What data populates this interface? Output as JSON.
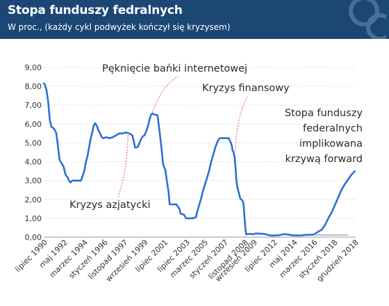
{
  "header": {
    "title": "Stopa funduszy fedralnych",
    "subtitle": "W proc., (każdy cykl podwyżek kończył się kryzysem)"
  },
  "colors": {
    "header_bg": "#1c4775",
    "line": "#2e6ed6",
    "grid": "#cfcfcf",
    "axis_text": "#333333",
    "annotation_leader": "#e05454",
    "forward_marker": "#bcbcbc"
  },
  "chart_data": {
    "type": "line",
    "title": "Stopa funduszy fedralnych",
    "subtitle": "W proc., (każdy cykl podwyżek kończył się kryzysem)",
    "xlabel": "",
    "ylabel": "",
    "ylim": [
      0,
      9
    ],
    "xlim": [
      1990.5,
      2019.0
    ],
    "yticks": [
      "0,00",
      "1,00",
      "2,00",
      "3,00",
      "4,00",
      "5,00",
      "6,00",
      "7,00",
      "8,00",
      "9,00"
    ],
    "xticks": [
      {
        "label": "lipiec 1990",
        "x": 1990.5
      },
      {
        "label": "maj 1992",
        "x": 1992.33
      },
      {
        "label": "marzec 1994",
        "x": 1994.17
      },
      {
        "label": "styczeń 1996",
        "x": 1996.0
      },
      {
        "label": "listopad 1997",
        "x": 1997.83
      },
      {
        "label": "wrzesień 1999",
        "x": 1999.67
      },
      {
        "label": "lipiec 2001",
        "x": 2001.5
      },
      {
        "label": "lipiec 2003",
        "x": 2003.5
      },
      {
        "label": "marzec 2005",
        "x": 2005.17
      },
      {
        "label": "styczeń 2007",
        "x": 2007.0
      },
      {
        "label": "listopad 2008",
        "x": 2008.83
      },
      {
        "label": "wrzesień 2009",
        "x": 2009.67
      },
      {
        "label": "lipiec 2012",
        "x": 2011.5
      },
      {
        "label": "maj 2014",
        "x": 2013.33
      },
      {
        "label": "marzec 2016",
        "x": 2015.17
      },
      {
        "label": "styczeń 2018",
        "x": 2017.0
      },
      {
        "label": "grudzień 2018",
        "x": 2018.92
      }
    ],
    "grid": true,
    "legend": "none",
    "series": [
      {
        "x": [
          1990.5,
          1990.6,
          1990.75,
          1990.9,
          1991.05,
          1991.2,
          1991.35,
          1991.5,
          1991.65,
          1991.8,
          1991.95,
          1992.05,
          1992.15,
          1992.3,
          1992.5,
          1992.7,
          1992.8,
          1992.95,
          1993.1,
          1993.3,
          1993.5,
          1993.7,
          1993.9,
          1994.05,
          1994.2,
          1994.35,
          1994.5,
          1994.65,
          1994.8,
          1994.95,
          1995.05,
          1995.2,
          1995.35,
          1995.5,
          1995.65,
          1995.8,
          1995.95,
          1996.2,
          1996.5,
          1996.8,
          1997.1,
          1997.4,
          1997.7,
          1998.0,
          1998.3,
          1998.6,
          1998.75,
          1998.85,
          1998.95,
          1999.1,
          1999.25,
          1999.4,
          1999.55,
          1999.7,
          1999.85,
          2000.0,
          2000.15,
          2000.3,
          2000.45,
          2000.6,
          2000.75,
          2000.9,
          2001.0,
          2001.1,
          2001.2,
          2001.3,
          2001.4,
          2001.5,
          2001.6,
          2001.75,
          2001.9,
          2002.0,
          2002.3,
          2002.6,
          2002.9,
          2003.0,
          2003.3,
          2003.5,
          2003.8,
          2004.1,
          2004.4,
          2004.5,
          2004.6,
          2004.75,
          2004.9,
          2005.0,
          2005.2,
          2005.4,
          2005.6,
          2005.8,
          2006.0,
          2006.2,
          2006.4,
          2006.5,
          2006.6,
          2006.8,
          2007.0,
          2007.2,
          2007.4,
          2007.6,
          2007.7,
          2007.75,
          2007.85,
          2007.95,
          2008.05,
          2008.1,
          2008.2,
          2008.35,
          2008.45,
          2008.55,
          2008.65,
          2008.75,
          2008.85,
          2008.95,
          2009.0,
          2009.3,
          2009.6,
          2009.9,
          2010.2,
          2010.5,
          2010.8,
          2011.1,
          2011.4,
          2011.7,
          2012.0,
          2012.4,
          2012.8,
          2013.2,
          2013.6,
          2014.0,
          2014.4,
          2014.8,
          2015.2,
          2015.6,
          2015.9,
          2016.2,
          2016.5,
          2016.8,
          2017.1,
          2017.4,
          2017.7,
          2018.0,
          2018.3,
          2018.6,
          2018.92
        ],
        "values": [
          8.15,
          8.1,
          7.8,
          7.2,
          6.2,
          5.85,
          5.8,
          5.7,
          5.5,
          4.8,
          4.1,
          4.0,
          3.9,
          3.75,
          3.3,
          3.15,
          3.0,
          2.9,
          3.0,
          3.0,
          3.0,
          3.0,
          3.0,
          3.25,
          3.5,
          4.0,
          4.3,
          4.8,
          5.25,
          5.6,
          5.9,
          6.05,
          5.9,
          5.65,
          5.5,
          5.3,
          5.25,
          5.3,
          5.25,
          5.3,
          5.4,
          5.5,
          5.5,
          5.55,
          5.5,
          5.4,
          5.0,
          4.75,
          4.75,
          4.8,
          5.0,
          5.2,
          5.35,
          5.4,
          5.6,
          5.85,
          6.2,
          6.5,
          6.55,
          6.5,
          6.5,
          6.45,
          6.0,
          5.5,
          5.0,
          4.5,
          3.9,
          3.7,
          3.6,
          3.0,
          2.4,
          1.75,
          1.73,
          1.75,
          1.5,
          1.25,
          1.2,
          1.0,
          1.0,
          1.0,
          1.05,
          1.3,
          1.5,
          1.8,
          2.1,
          2.35,
          2.75,
          3.1,
          3.5,
          4.0,
          4.4,
          4.8,
          5.1,
          5.2,
          5.25,
          5.25,
          5.25,
          5.25,
          5.25,
          5.0,
          4.8,
          4.6,
          4.5,
          4.2,
          3.5,
          3.0,
          2.6,
          2.3,
          2.05,
          2.0,
          1.95,
          1.8,
          1.0,
          0.3,
          0.15,
          0.18,
          0.15,
          0.2,
          0.18,
          0.18,
          0.15,
          0.1,
          0.08,
          0.1,
          0.1,
          0.16,
          0.14,
          0.1,
          0.09,
          0.09,
          0.12,
          0.12,
          0.14,
          0.3,
          0.4,
          0.65,
          1.0,
          1.3,
          1.7,
          2.1,
          2.5,
          2.8,
          3.05,
          3.3,
          3.5
        ]
      }
    ],
    "annotations": [
      {
        "text": "Pęknięcie bańki internetowej",
        "x": 2000.4,
        "y": 6.6
      },
      {
        "text": "Kryzys finansowy",
        "x": 2008.0,
        "y": 4.55
      },
      {
        "text": "Kryzys azjatycki",
        "x": 1998.2,
        "y": 5.55
      },
      {
        "lines": [
          "Stopa funduszy",
          "federalnych",
          "implikowana",
          "krzywą forward"
        ]
      }
    ]
  }
}
